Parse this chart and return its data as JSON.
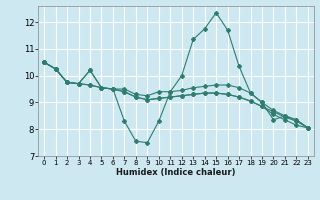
{
  "title": "",
  "xlabel": "Humidex (Indice chaleur)",
  "ylabel": "",
  "background_color": "#cde8f0",
  "grid_color": "#ffffff",
  "line_color": "#2e7d6e",
  "xlim": [
    -0.5,
    23.5
  ],
  "ylim": [
    7,
    12.6
  ],
  "yticks": [
    7,
    8,
    9,
    10,
    11,
    12
  ],
  "xticks": [
    0,
    1,
    2,
    3,
    4,
    5,
    6,
    7,
    8,
    9,
    10,
    11,
    12,
    13,
    14,
    15,
    16,
    17,
    18,
    19,
    20,
    21,
    22,
    23
  ],
  "series": [
    [
      10.5,
      10.25,
      9.75,
      9.7,
      10.2,
      9.55,
      9.5,
      8.3,
      7.55,
      7.5,
      8.3,
      9.4,
      10.0,
      11.35,
      11.75,
      12.35,
      11.7,
      10.35,
      9.35,
      9.0,
      8.35,
      8.5,
      8.35,
      8.05
    ],
    [
      10.5,
      10.25,
      9.75,
      9.7,
      10.2,
      9.55,
      9.5,
      9.5,
      9.3,
      9.25,
      9.4,
      9.4,
      9.45,
      9.55,
      9.6,
      9.65,
      9.65,
      9.55,
      9.35,
      9.0,
      8.7,
      8.5,
      8.35,
      8.05
    ],
    [
      10.5,
      10.25,
      9.75,
      9.7,
      9.65,
      9.55,
      9.5,
      9.4,
      9.2,
      9.1,
      9.15,
      9.2,
      9.25,
      9.3,
      9.35,
      9.35,
      9.3,
      9.2,
      9.05,
      8.85,
      8.65,
      8.45,
      8.3,
      8.05
    ],
    [
      10.5,
      10.25,
      9.75,
      9.7,
      9.65,
      9.55,
      9.5,
      9.4,
      9.2,
      9.1,
      9.15,
      9.2,
      9.25,
      9.3,
      9.35,
      9.35,
      9.3,
      9.2,
      9.05,
      8.85,
      8.55,
      8.35,
      8.15,
      8.05
    ]
  ],
  "xlabel_fontsize": 6.0,
  "xlabel_bold": true,
  "ytick_fontsize": 6.0,
  "xtick_fontsize": 5.0
}
